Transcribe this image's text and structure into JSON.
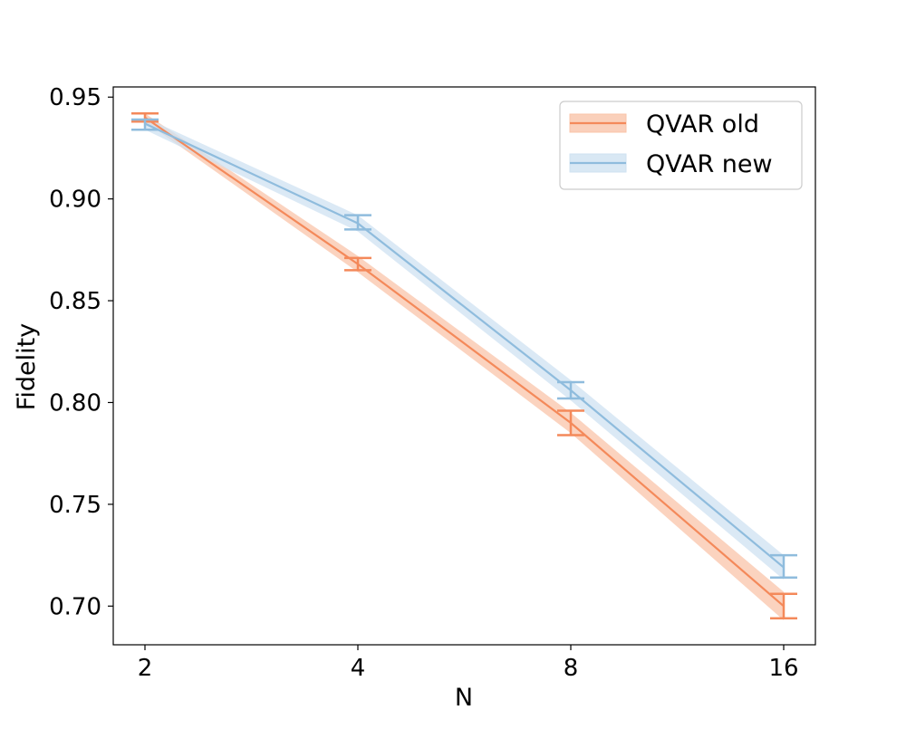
{
  "chart_data": {
    "type": "line",
    "x_scale": "log2",
    "x": [
      2,
      4,
      8,
      16
    ],
    "x_tick_labels": [
      "2",
      "4",
      "8",
      "16"
    ],
    "xlabel": "N",
    "ylabel": "Fidelity",
    "ylim": [
      0.681,
      0.955
    ],
    "y_ticks": [
      0.7,
      0.75,
      0.8,
      0.85,
      0.9,
      0.95
    ],
    "y_tick_labels": [
      "0.70",
      "0.75",
      "0.80",
      "0.85",
      "0.90",
      "0.95"
    ],
    "grid": false,
    "legend_position": "top-right",
    "series": [
      {
        "name": "QVAR old",
        "color": "#f4895a",
        "band_color": "#f9c4aa",
        "values": [
          0.94,
          0.868,
          0.79,
          0.7
        ],
        "err_low": [
          0.938,
          0.865,
          0.784,
          0.694
        ],
        "err_high": [
          0.942,
          0.871,
          0.796,
          0.706
        ],
        "band_low": [
          0.938,
          0.864,
          0.785,
          0.693
        ],
        "band_high": [
          0.942,
          0.872,
          0.795,
          0.707
        ]
      },
      {
        "name": "QVAR new",
        "color": "#8fbcdd",
        "band_color": "#cfe2f1",
        "values": [
          0.937,
          0.888,
          0.806,
          0.719
        ],
        "err_low": [
          0.934,
          0.885,
          0.802,
          0.714
        ],
        "err_high": [
          0.939,
          0.892,
          0.81,
          0.725
        ],
        "band_low": [
          0.934,
          0.884,
          0.801,
          0.713
        ],
        "band_high": [
          0.94,
          0.892,
          0.811,
          0.725
        ]
      }
    ]
  }
}
